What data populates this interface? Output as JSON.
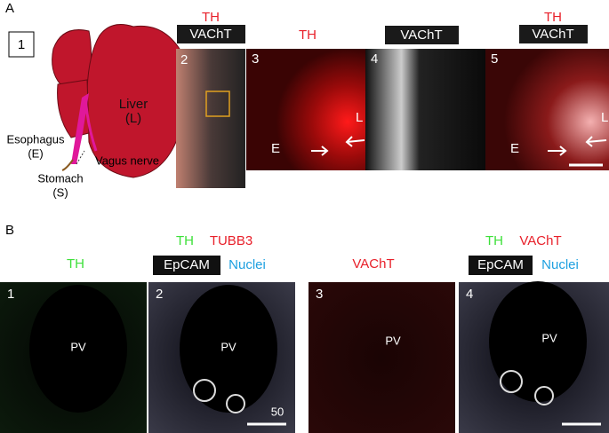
{
  "panel_a": {
    "label": "A",
    "diagram": {
      "number": "1",
      "liver": "Liver",
      "liver_abbr": "(L)",
      "esophagus": "Esophagus",
      "esophagus_abbr": "(E)",
      "vagus": "Vagus nerve",
      "stomach": "Stomach",
      "stomach_abbr": "(S)"
    },
    "images": [
      {
        "number": "2",
        "labels": [
          "TH",
          "VAChT"
        ]
      },
      {
        "number": "3",
        "labels": [
          "TH"
        ],
        "marks": [
          "E",
          "L"
        ]
      },
      {
        "number": "4",
        "labels": [
          "VAChT"
        ]
      },
      {
        "number": "5",
        "labels": [
          "TH",
          "VAChT"
        ],
        "marks": [
          "E",
          "L"
        ]
      }
    ]
  },
  "panel_b": {
    "label": "B",
    "images": [
      {
        "number": "1",
        "labels": [
          "TH"
        ],
        "region": "PV"
      },
      {
        "number": "2",
        "labels": [
          "TH",
          "TUBB3",
          "EpCAM",
          "Nuclei"
        ],
        "region": "PV",
        "scale": "50"
      },
      {
        "number": "3",
        "labels": [
          "VAChT"
        ],
        "region": "PV"
      },
      {
        "number": "4",
        "labels": [
          "TH",
          "VAChT",
          "EpCAM",
          "Nuclei"
        ],
        "region": "PV"
      }
    ]
  }
}
